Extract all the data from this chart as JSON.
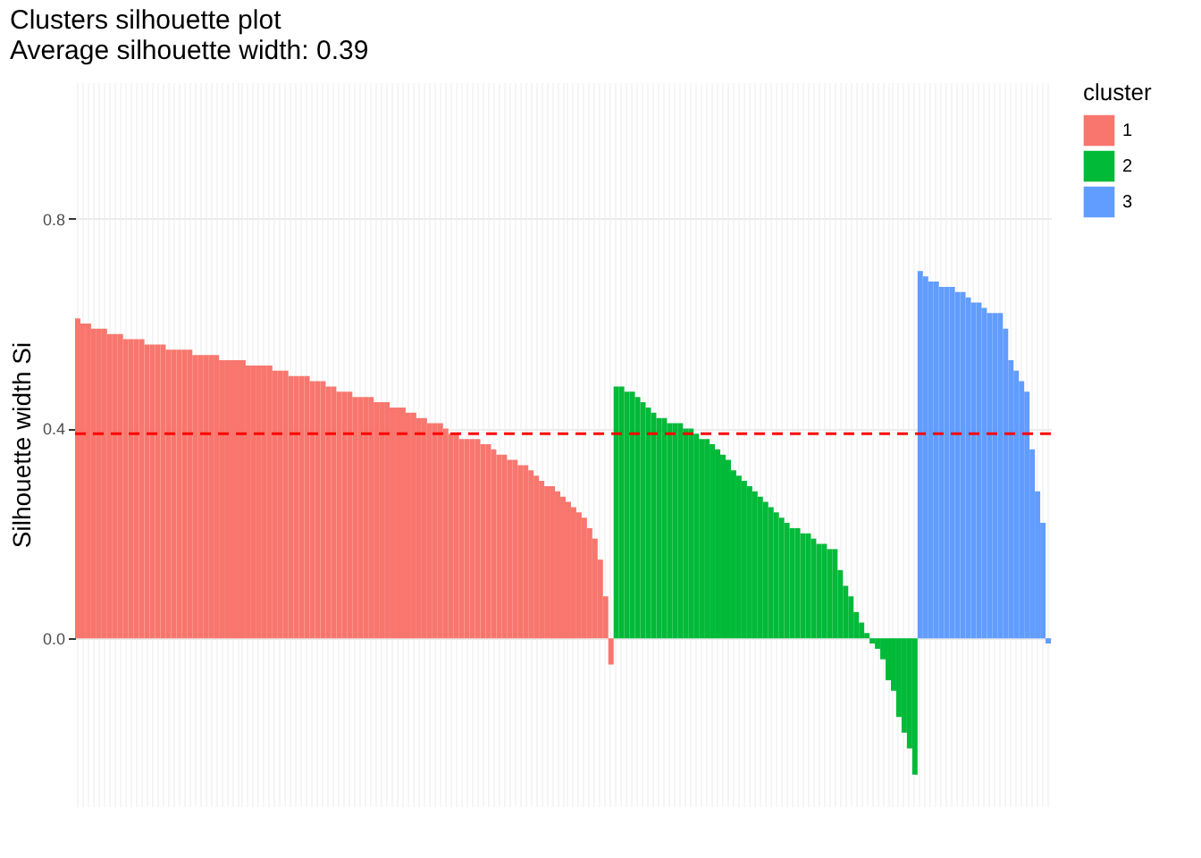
{
  "chart_data": {
    "type": "bar",
    "title": "Clusters silhouette plot",
    "subtitle": " Average silhouette width: 0.39",
    "ylabel": "Silhouette width Si",
    "legend_title": "cluster",
    "legend": "right",
    "grid": true,
    "tick_labels": "y",
    "categories": [
      null,
      null,
      null,
      null,
      null,
      null,
      null,
      null,
      null,
      null,
      null,
      null,
      null,
      null,
      null,
      null,
      null,
      null,
      null,
      null,
      null,
      null,
      null,
      null,
      null,
      null,
      null,
      null,
      null,
      null,
      null,
      null,
      null,
      null,
      null,
      null,
      null,
      null,
      null,
      null,
      null,
      null,
      null,
      null,
      null,
      null,
      null,
      null,
      null,
      null,
      null,
      null,
      null,
      null,
      null,
      null,
      null,
      null,
      null,
      null,
      null,
      null,
      null,
      null,
      null,
      null,
      null,
      null,
      null,
      null,
      null,
      null,
      null,
      null,
      null,
      null,
      null,
      null,
      null,
      null,
      null,
      null,
      null,
      null,
      null,
      null,
      null,
      null,
      null,
      null,
      null,
      null,
      null,
      null,
      null,
      null,
      null,
      null,
      null,
      null,
      null,
      null,
      null,
      null,
      null,
      null,
      null,
      null,
      null,
      null,
      null,
      null,
      null,
      null,
      null,
      null,
      null,
      null,
      null,
      null,
      null,
      null,
      null,
      null,
      null,
      null,
      null,
      null,
      null,
      null,
      null,
      null,
      null,
      null,
      null,
      null,
      null,
      null,
      null,
      null,
      null,
      null,
      null,
      null,
      null,
      null,
      null,
      null,
      null,
      null,
      null,
      null,
      null,
      null,
      null,
      null,
      null,
      null,
      null,
      null,
      null,
      null,
      null,
      null,
      null,
      null,
      null,
      null,
      null,
      null,
      null,
      null,
      null,
      null,
      null,
      null,
      null,
      null,
      null,
      null,
      null,
      null,
      null
    ],
    "ylim": [
      -0.32,
      1.06
    ],
    "yticks": [
      {
        "value": 0,
        "label": "0.0"
      },
      {
        "value": 0.4,
        "label": "0.4"
      },
      {
        "value": 0.8,
        "label": "0.8"
      }
    ],
    "ref_lines": [
      {
        "axis": "y",
        "value": 0.39,
        "color": "#ff0000",
        "line_style": "dashed"
      }
    ],
    "series": [
      {
        "name": "1",
        "color": "#f8766d",
        "values": [
          0.61,
          0.6,
          0.6,
          0.59,
          0.59,
          0.59,
          0.58,
          0.58,
          0.58,
          0.57,
          0.57,
          0.57,
          0.57,
          0.56,
          0.56,
          0.56,
          0.56,
          0.55,
          0.55,
          0.55,
          0.55,
          0.55,
          0.54,
          0.54,
          0.54,
          0.54,
          0.54,
          0.53,
          0.53,
          0.53,
          0.53,
          0.53,
          0.52,
          0.52,
          0.52,
          0.52,
          0.52,
          0.51,
          0.51,
          0.51,
          0.5,
          0.5,
          0.5,
          0.5,
          0.49,
          0.49,
          0.49,
          0.48,
          0.48,
          0.47,
          0.47,
          0.47,
          0.46,
          0.46,
          0.46,
          0.46,
          0.45,
          0.45,
          0.45,
          0.44,
          0.44,
          0.44,
          0.43,
          0.43,
          0.42,
          0.42,
          0.41,
          0.41,
          0.41,
          0.4,
          0.39,
          0.39,
          0.38,
          0.38,
          0.38,
          0.38,
          0.37,
          0.37,
          0.36,
          0.35,
          0.35,
          0.34,
          0.34,
          0.33,
          0.33,
          0.32,
          0.31,
          0.3,
          0.29,
          0.29,
          0.28,
          0.27,
          0.26,
          0.25,
          0.24,
          0.23,
          0.21,
          0.19,
          0.15,
          0.08,
          -0.05,
          null,
          null,
          null,
          null,
          null,
          null,
          null,
          null,
          null,
          null,
          null,
          null,
          null,
          null,
          null,
          null,
          null,
          null,
          null,
          null,
          null,
          null,
          null,
          null,
          null,
          null,
          null,
          null,
          null,
          null,
          null,
          null,
          null,
          null,
          null,
          null,
          null,
          null,
          null,
          null,
          null,
          null,
          null,
          null,
          null,
          null,
          null,
          null,
          null,
          null,
          null,
          null,
          null,
          null,
          null,
          null,
          null,
          null,
          null,
          null,
          null,
          null,
          null,
          null,
          null,
          null,
          null,
          null,
          null,
          null,
          null,
          null,
          null,
          null,
          null,
          null,
          null,
          null,
          null,
          null,
          null,
          null
        ]
      },
      {
        "name": "2",
        "color": "#00ba38",
        "values": [
          null,
          null,
          null,
          null,
          null,
          null,
          null,
          null,
          null,
          null,
          null,
          null,
          null,
          null,
          null,
          null,
          null,
          null,
          null,
          null,
          null,
          null,
          null,
          null,
          null,
          null,
          null,
          null,
          null,
          null,
          null,
          null,
          null,
          null,
          null,
          null,
          null,
          null,
          null,
          null,
          null,
          null,
          null,
          null,
          null,
          null,
          null,
          null,
          null,
          null,
          null,
          null,
          null,
          null,
          null,
          null,
          null,
          null,
          null,
          null,
          null,
          null,
          null,
          null,
          null,
          null,
          null,
          null,
          null,
          null,
          null,
          null,
          null,
          null,
          null,
          null,
          null,
          null,
          null,
          null,
          null,
          null,
          null,
          null,
          null,
          null,
          null,
          null,
          null,
          null,
          null,
          null,
          null,
          null,
          null,
          null,
          null,
          null,
          null,
          null,
          null,
          0.48,
          0.48,
          0.47,
          0.47,
          0.46,
          0.45,
          0.44,
          0.43,
          0.42,
          0.42,
          0.41,
          0.41,
          0.41,
          0.4,
          0.4,
          0.39,
          0.38,
          0.38,
          0.37,
          0.36,
          0.35,
          0.34,
          0.32,
          0.31,
          0.3,
          0.29,
          0.28,
          0.27,
          0.26,
          0.25,
          0.24,
          0.23,
          0.22,
          0.21,
          0.21,
          0.2,
          0.2,
          0.19,
          0.18,
          0.18,
          0.17,
          0.17,
          0.13,
          0.1,
          0.08,
          0.05,
          0.03,
          0.01,
          -0.01,
          -0.02,
          -0.04,
          -0.08,
          -0.1,
          -0.15,
          -0.18,
          -0.21,
          -0.26,
          null,
          null,
          null,
          null,
          null,
          null,
          null,
          null,
          null,
          null,
          null,
          null,
          null,
          null,
          null,
          null,
          null,
          null,
          null,
          null,
          null,
          null,
          null,
          null,
          null
        ]
      },
      {
        "name": "3",
        "color": "#619cff",
        "values": [
          null,
          null,
          null,
          null,
          null,
          null,
          null,
          null,
          null,
          null,
          null,
          null,
          null,
          null,
          null,
          null,
          null,
          null,
          null,
          null,
          null,
          null,
          null,
          null,
          null,
          null,
          null,
          null,
          null,
          null,
          null,
          null,
          null,
          null,
          null,
          null,
          null,
          null,
          null,
          null,
          null,
          null,
          null,
          null,
          null,
          null,
          null,
          null,
          null,
          null,
          null,
          null,
          null,
          null,
          null,
          null,
          null,
          null,
          null,
          null,
          null,
          null,
          null,
          null,
          null,
          null,
          null,
          null,
          null,
          null,
          null,
          null,
          null,
          null,
          null,
          null,
          null,
          null,
          null,
          null,
          null,
          null,
          null,
          null,
          null,
          null,
          null,
          null,
          null,
          null,
          null,
          null,
          null,
          null,
          null,
          null,
          null,
          null,
          null,
          null,
          null,
          null,
          null,
          null,
          null,
          null,
          null,
          null,
          null,
          null,
          null,
          null,
          null,
          null,
          null,
          null,
          null,
          null,
          null,
          null,
          null,
          null,
          null,
          null,
          null,
          null,
          null,
          null,
          null,
          null,
          null,
          null,
          null,
          null,
          null,
          null,
          null,
          null,
          null,
          null,
          null,
          null,
          null,
          null,
          null,
          null,
          null,
          null,
          null,
          null,
          null,
          null,
          null,
          null,
          null,
          null,
          null,
          null,
          0.7,
          0.69,
          0.68,
          0.68,
          0.67,
          0.67,
          0.67,
          0.66,
          0.66,
          0.65,
          0.64,
          0.64,
          0.63,
          0.62,
          0.62,
          0.62,
          0.59,
          0.53,
          0.51,
          0.49,
          0.47,
          0.36,
          0.28,
          0.22,
          -0.01
        ]
      }
    ]
  }
}
